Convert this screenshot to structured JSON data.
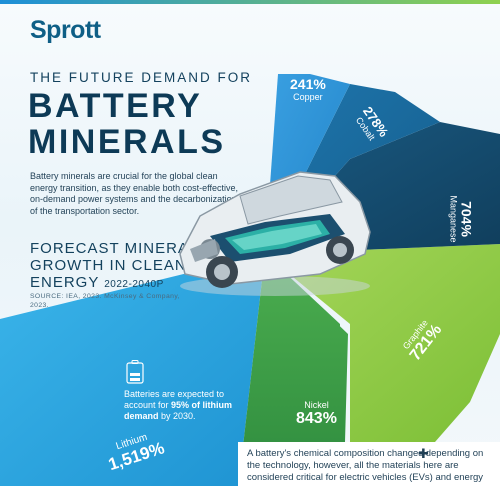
{
  "brand": {
    "logo": "Sprott"
  },
  "header": {
    "kicker": "THE FUTURE DEMAND FOR",
    "title_line1": "BATTERY",
    "title_line2": "MINERALS"
  },
  "intro": "Battery minerals are crucial for the global clean energy transition, as they enable both cost-effective, on-demand power systems and the decarbonization of the transportation sector.",
  "forecast": {
    "line1": "FORECAST MINERAL",
    "line2": "GROWTH IN CLEAN",
    "line3": "ENERGY",
    "years": "2022-2040P",
    "source": "SOURCE: IEA, 2023. McKinsey & Company, 2023."
  },
  "minerals": [
    {
      "name": "Copper",
      "growth": "241%",
      "color": "#2a8fd6"
    },
    {
      "name": "Cobalt",
      "growth": "278%",
      "color": "#17679a"
    },
    {
      "name": "Manganese",
      "growth": "704%",
      "color": "#14486a"
    },
    {
      "name": "Graphite",
      "growth": "721%",
      "color": "#8cc63f"
    },
    {
      "name": "Nickel",
      "growth": "843%",
      "color": "#3c9a45"
    },
    {
      "name": "Lithium",
      "growth": "1,519%",
      "color": "#29a8e0"
    }
  ],
  "lithium_note": {
    "prefix": "Batteries are expected to account for ",
    "bold": "95% of lithium demand",
    "suffix": " by 2030."
  },
  "bottom_text": "A battery's chemical composition changes depending on the technology, however, all the materials here are considered critical for electric vehicles (EVs) and energy storage"
}
